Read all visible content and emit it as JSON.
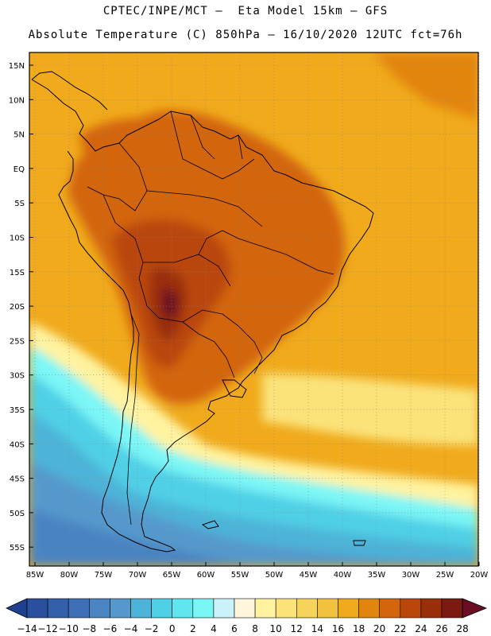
{
  "header": {
    "line1": "CPTEC/INPE/MCT —  Eta Model 15km — GFS",
    "line2": "Absolute Temperature (C) 850hPa — 16/10/2020 12UTC fct=76h"
  },
  "map": {
    "region": "South America",
    "lat_labels": [
      "15N",
      "10N",
      "5N",
      "EQ",
      "5S",
      "10S",
      "15S",
      "20S",
      "25S",
      "30S",
      "35S",
      "40S",
      "45S",
      "50S",
      "55S"
    ],
    "lon_labels": [
      "85W",
      "80W",
      "75W",
      "70W",
      "65W",
      "60W",
      "55W",
      "50W",
      "45W",
      "40W",
      "35W",
      "30W",
      "25W",
      "20W"
    ]
  },
  "colorbar": {
    "labels": [
      "-14",
      "-12",
      "-10",
      "-8",
      "-6",
      "-4",
      "-2",
      "0",
      "2",
      "4",
      "6",
      "8",
      "10",
      "12",
      "14",
      "16",
      "18",
      "20",
      "22",
      "24",
      "26",
      "28"
    ],
    "colors": [
      "#1f3f8f",
      "#2a4f9e",
      "#345faa",
      "#3f6fb6",
      "#4a84c2",
      "#5599cc",
      "#4db3d8",
      "#4fd0e6",
      "#5fe6ee",
      "#7bf6f6",
      "#c9f3f8",
      "#fff6dc",
      "#fff3a0",
      "#fbe37a",
      "#f6d35a",
      "#f3c140",
      "#f0aa1c",
      "#e2850e",
      "#d3650c",
      "#b9470c",
      "#9a2f0c",
      "#7a1a10",
      "#6a0e24"
    ]
  }
}
